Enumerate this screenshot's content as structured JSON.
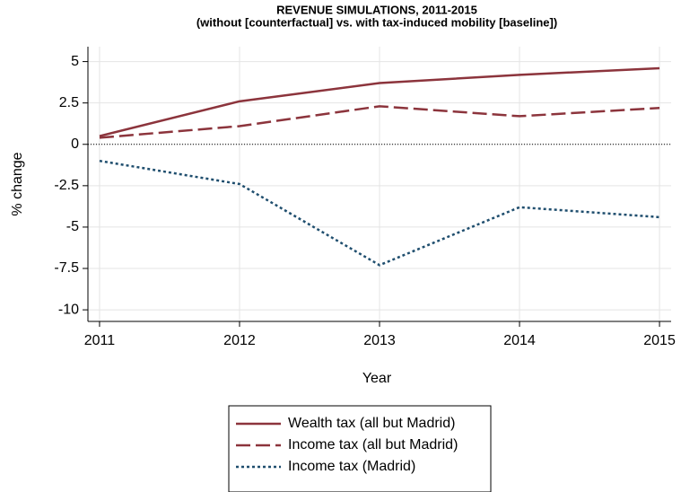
{
  "chart_data": {
    "type": "line",
    "title": "REVENUE SIMULATIONS, 2011-2015",
    "subtitle": "(without [counterfactual] vs. with tax-induced mobility [baseline])",
    "x_label": "Year",
    "y_label": "% change",
    "x": [
      2011,
      2012,
      2013,
      2014,
      2015
    ],
    "series": [
      {
        "name": "Wealth tax (all but Madrid)",
        "color": "#8c343c",
        "style": "solid",
        "values": [
          0.5,
          2.6,
          3.7,
          4.2,
          4.6
        ]
      },
      {
        "name": "Income tax (all but Madrid)",
        "color": "#8c343c",
        "style": "dashed",
        "values": [
          0.4,
          1.1,
          2.3,
          1.7,
          2.2
        ]
      },
      {
        "name": "Income tax (Madrid)",
        "color": "#1f4e6e",
        "style": "dotted",
        "values": [
          -1.0,
          -2.4,
          -7.3,
          -3.8,
          -4.4
        ]
      }
    ],
    "xlim": [
      2010.917,
      2015.083
    ],
    "xticks": [
      2011,
      2012,
      2013,
      2014,
      2015
    ],
    "ylim": [
      -10.7,
      5.9
    ],
    "yticks": [
      5,
      2.5,
      0,
      -2.5,
      -5,
      -7.5,
      -10
    ],
    "grid": true,
    "zero_line": true,
    "legend": "bottom"
  }
}
